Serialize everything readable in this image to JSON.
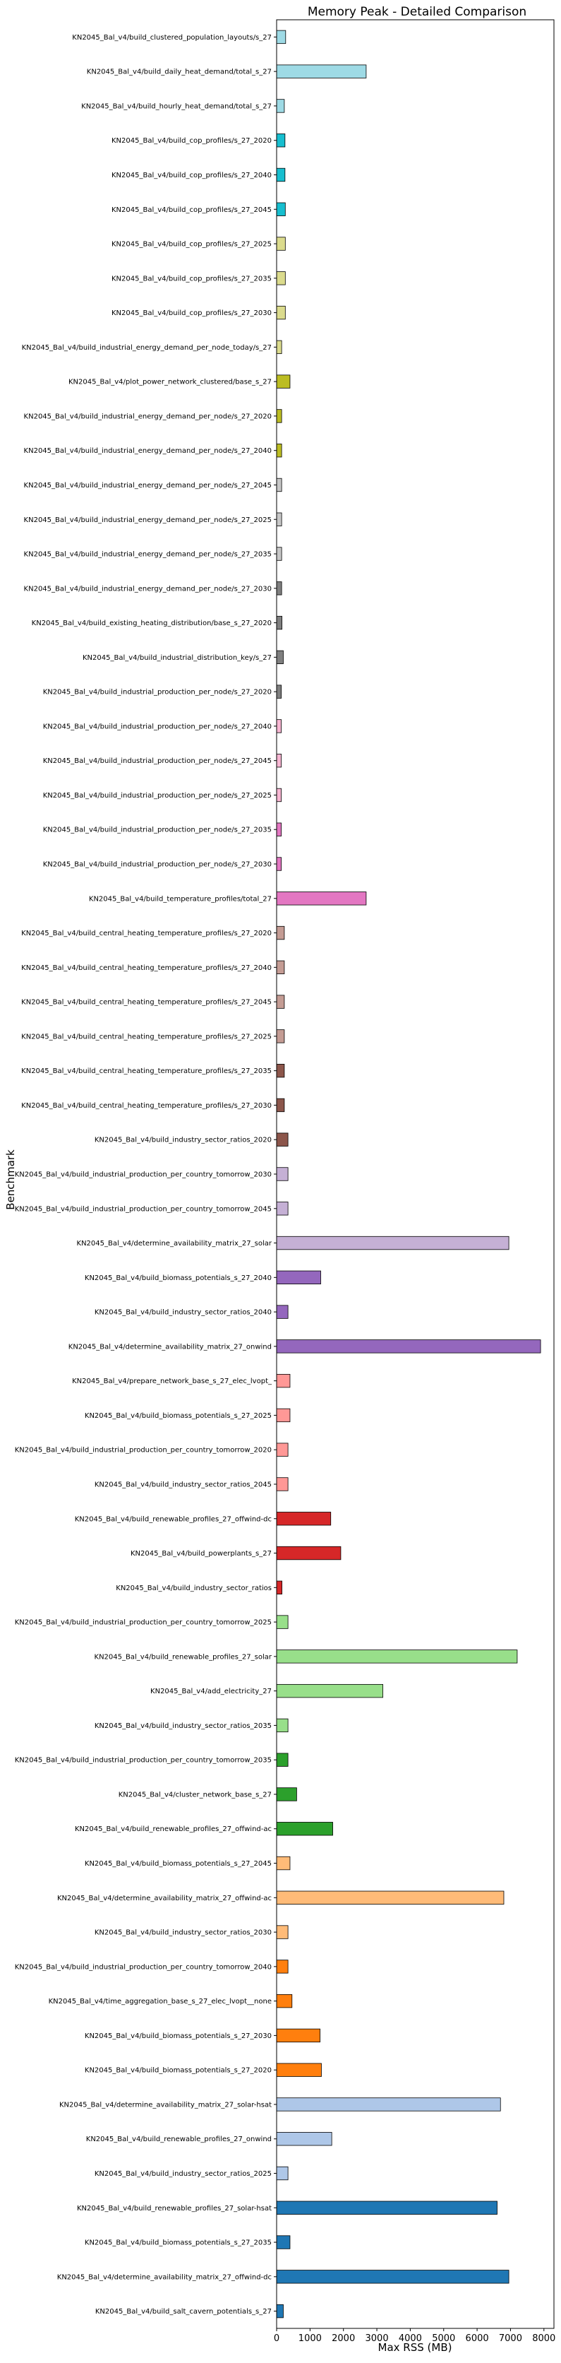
{
  "chart_data": {
    "type": "bar",
    "orientation": "horizontal",
    "title": "Memory Peak - Detailed Comparison",
    "xlabel": "Max RSS (MB)",
    "ylabel": "Benchmark",
    "xlim": [
      0,
      8300
    ],
    "xticks": [
      0,
      1000,
      2000,
      3000,
      4000,
      5000,
      6000,
      7000,
      8000
    ],
    "grid": false,
    "bars": [
      {
        "label": "KN2045_Bal_v4/build_clustered_population_layouts/s_27",
        "value": 270,
        "color": "#9edae5"
      },
      {
        "label": "KN2045_Bal_v4/build_daily_heat_demand/total_s_27",
        "value": 2680,
        "color": "#9edae5"
      },
      {
        "label": "KN2045_Bal_v4/build_hourly_heat_demand/total_s_27",
        "value": 230,
        "color": "#9edae5"
      },
      {
        "label": "KN2045_Bal_v4/build_cop_profiles/s_27_2020",
        "value": 250,
        "color": "#17becf"
      },
      {
        "label": "KN2045_Bal_v4/build_cop_profiles/s_27_2040",
        "value": 250,
        "color": "#17becf"
      },
      {
        "label": "KN2045_Bal_v4/build_cop_profiles/s_27_2045",
        "value": 260,
        "color": "#17becf"
      },
      {
        "label": "KN2045_Bal_v4/build_cop_profiles/s_27_2025",
        "value": 260,
        "color": "#dbdb8d"
      },
      {
        "label": "KN2045_Bal_v4/build_cop_profiles/s_27_2035",
        "value": 260,
        "color": "#dbdb8d"
      },
      {
        "label": "KN2045_Bal_v4/build_cop_profiles/s_27_2030",
        "value": 260,
        "color": "#dbdb8d"
      },
      {
        "label": "KN2045_Bal_v4/build_industrial_energy_demand_per_node_today/s_27",
        "value": 150,
        "color": "#dbdb8d"
      },
      {
        "label": "KN2045_Bal_v4/plot_power_network_clustered/base_s_27",
        "value": 400,
        "color": "#bcbd22"
      },
      {
        "label": "KN2045_Bal_v4/build_industrial_energy_demand_per_node/s_27_2020",
        "value": 150,
        "color": "#bcbd22"
      },
      {
        "label": "KN2045_Bal_v4/build_industrial_energy_demand_per_node/s_27_2040",
        "value": 150,
        "color": "#bcbd22"
      },
      {
        "label": "KN2045_Bal_v4/build_industrial_energy_demand_per_node/s_27_2045",
        "value": 150,
        "color": "#c7c7c7"
      },
      {
        "label": "KN2045_Bal_v4/build_industrial_energy_demand_per_node/s_27_2025",
        "value": 150,
        "color": "#c7c7c7"
      },
      {
        "label": "KN2045_Bal_v4/build_industrial_energy_demand_per_node/s_27_2035",
        "value": 150,
        "color": "#c7c7c7"
      },
      {
        "label": "KN2045_Bal_v4/build_industrial_energy_demand_per_node/s_27_2030",
        "value": 150,
        "color": "#7f7f7f"
      },
      {
        "label": "KN2045_Bal_v4/build_existing_heating_distribution/base_s_27_2020",
        "value": 160,
        "color": "#7f7f7f"
      },
      {
        "label": "KN2045_Bal_v4/build_industrial_distribution_key/s_27",
        "value": 200,
        "color": "#7f7f7f"
      },
      {
        "label": "KN2045_Bal_v4/build_industrial_production_per_node/s_27_2020",
        "value": 140,
        "color": "#7f7f7f"
      },
      {
        "label": "KN2045_Bal_v4/build_industrial_production_per_node/s_27_2040",
        "value": 140,
        "color": "#f7b6d2"
      },
      {
        "label": "KN2045_Bal_v4/build_industrial_production_per_node/s_27_2045",
        "value": 140,
        "color": "#f7b6d2"
      },
      {
        "label": "KN2045_Bal_v4/build_industrial_production_per_node/s_27_2025",
        "value": 140,
        "color": "#f7b6d2"
      },
      {
        "label": "KN2045_Bal_v4/build_industrial_production_per_node/s_27_2035",
        "value": 140,
        "color": "#e377c2"
      },
      {
        "label": "KN2045_Bal_v4/build_industrial_production_per_node/s_27_2030",
        "value": 140,
        "color": "#e377c2"
      },
      {
        "label": "KN2045_Bal_v4/build_temperature_profiles/total_27",
        "value": 2680,
        "color": "#e377c2"
      },
      {
        "label": "KN2045_Bal_v4/build_central_heating_temperature_profiles/s_27_2020",
        "value": 230,
        "color": "#c49c94"
      },
      {
        "label": "KN2045_Bal_v4/build_central_heating_temperature_profiles/s_27_2040",
        "value": 230,
        "color": "#c49c94"
      },
      {
        "label": "KN2045_Bal_v4/build_central_heating_temperature_profiles/s_27_2045",
        "value": 230,
        "color": "#c49c94"
      },
      {
        "label": "KN2045_Bal_v4/build_central_heating_temperature_profiles/s_27_2025",
        "value": 230,
        "color": "#c49c94"
      },
      {
        "label": "KN2045_Bal_v4/build_central_heating_temperature_profiles/s_27_2035",
        "value": 230,
        "color": "#8c564b"
      },
      {
        "label": "KN2045_Bal_v4/build_central_heating_temperature_profiles/s_27_2030",
        "value": 230,
        "color": "#8c564b"
      },
      {
        "label": "KN2045_Bal_v4/build_industry_sector_ratios_2020",
        "value": 340,
        "color": "#8c564b"
      },
      {
        "label": "KN2045_Bal_v4/build_industrial_production_per_country_tomorrow_2030",
        "value": 340,
        "color": "#c5b0d5"
      },
      {
        "label": "KN2045_Bal_v4/build_industrial_production_per_country_tomorrow_2045",
        "value": 340,
        "color": "#c5b0d5"
      },
      {
        "label": "KN2045_Bal_v4/determine_availability_matrix_27_solar",
        "value": 6950,
        "color": "#c5b0d5"
      },
      {
        "label": "KN2045_Bal_v4/build_biomass_potentials_s_27_2040",
        "value": 1320,
        "color": "#9467bd"
      },
      {
        "label": "KN2045_Bal_v4/build_industry_sector_ratios_2040",
        "value": 340,
        "color": "#9467bd"
      },
      {
        "label": "KN2045_Bal_v4/determine_availability_matrix_27_onwind",
        "value": 7900,
        "color": "#9467bd"
      },
      {
        "label": "KN2045_Bal_v4/prepare_network_base_s_27_elec_lvopt_",
        "value": 400,
        "color": "#ff9896"
      },
      {
        "label": "KN2045_Bal_v4/build_biomass_potentials_s_27_2025",
        "value": 400,
        "color": "#ff9896"
      },
      {
        "label": "KN2045_Bal_v4/build_industrial_production_per_country_tomorrow_2020",
        "value": 340,
        "color": "#ff9896"
      },
      {
        "label": "KN2045_Bal_v4/build_industry_sector_ratios_2045",
        "value": 340,
        "color": "#ff9896"
      },
      {
        "label": "KN2045_Bal_v4/build_renewable_profiles_27_offwind-dc",
        "value": 1620,
        "color": "#d62728"
      },
      {
        "label": "KN2045_Bal_v4/build_powerplants_s_27",
        "value": 1920,
        "color": "#d62728"
      },
      {
        "label": "KN2045_Bal_v4/build_industry_sector_ratios",
        "value": 160,
        "color": "#d62728"
      },
      {
        "label": "KN2045_Bal_v4/build_industrial_production_per_country_tomorrow_2025",
        "value": 340,
        "color": "#98df8a"
      },
      {
        "label": "KN2045_Bal_v4/build_renewable_profiles_27_solar",
        "value": 7200,
        "color": "#98df8a"
      },
      {
        "label": "KN2045_Bal_v4/add_electricity_27",
        "value": 3180,
        "color": "#98df8a"
      },
      {
        "label": "KN2045_Bal_v4/build_industry_sector_ratios_2035",
        "value": 340,
        "color": "#98df8a"
      },
      {
        "label": "KN2045_Bal_v4/build_industrial_production_per_country_tomorrow_2035",
        "value": 340,
        "color": "#2ca02c"
      },
      {
        "label": "KN2045_Bal_v4/cluster_network_base_s_27",
        "value": 600,
        "color": "#2ca02c"
      },
      {
        "label": "KN2045_Bal_v4/build_renewable_profiles_27_offwind-ac",
        "value": 1680,
        "color": "#2ca02c"
      },
      {
        "label": "KN2045_Bal_v4/build_biomass_potentials_s_27_2045",
        "value": 400,
        "color": "#ffbb78"
      },
      {
        "label": "KN2045_Bal_v4/determine_availability_matrix_27_offwind-ac",
        "value": 6800,
        "color": "#ffbb78"
      },
      {
        "label": "KN2045_Bal_v4/build_industry_sector_ratios_2030",
        "value": 340,
        "color": "#ffbb78"
      },
      {
        "label": "KN2045_Bal_v4/build_industrial_production_per_country_tomorrow_2040",
        "value": 340,
        "color": "#ff7f0e"
      },
      {
        "label": "KN2045_Bal_v4/time_aggregation_base_s_27_elec_lvopt__none",
        "value": 460,
        "color": "#ff7f0e"
      },
      {
        "label": "KN2045_Bal_v4/build_biomass_potentials_s_27_2030",
        "value": 1300,
        "color": "#ff7f0e"
      },
      {
        "label": "KN2045_Bal_v4/build_biomass_potentials_s_27_2020",
        "value": 1340,
        "color": "#ff7f0e"
      },
      {
        "label": "KN2045_Bal_v4/determine_availability_matrix_27_solar-hsat",
        "value": 6700,
        "color": "#aec7e8"
      },
      {
        "label": "KN2045_Bal_v4/build_renewable_profiles_27_onwind",
        "value": 1650,
        "color": "#aec7e8"
      },
      {
        "label": "KN2045_Bal_v4/build_industry_sector_ratios_2025",
        "value": 340,
        "color": "#aec7e8"
      },
      {
        "label": "KN2045_Bal_v4/build_renewable_profiles_27_solar-hsat",
        "value": 6600,
        "color": "#1f77b4"
      },
      {
        "label": "KN2045_Bal_v4/build_biomass_potentials_s_27_2035",
        "value": 400,
        "color": "#1f77b4"
      },
      {
        "label": "KN2045_Bal_v4/determine_availability_matrix_27_offwind-dc",
        "value": 6950,
        "color": "#1f77b4"
      },
      {
        "label": "KN2045_Bal_v4/build_salt_cavern_potentials_s_27",
        "value": 200,
        "color": "#1f77b4"
      }
    ]
  }
}
